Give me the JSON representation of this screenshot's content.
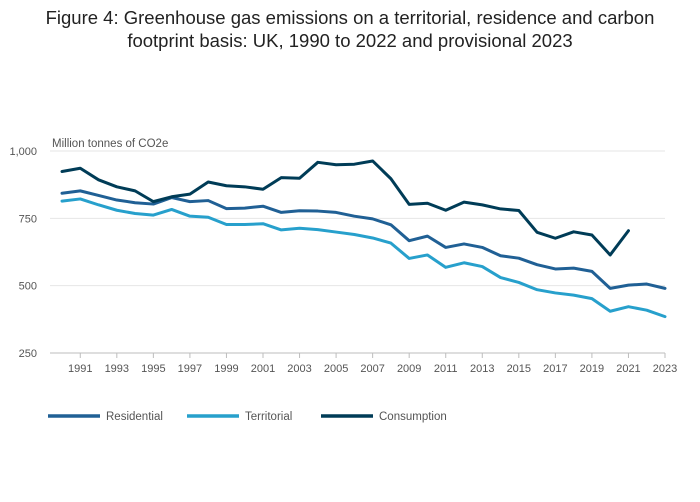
{
  "title_lines": [
    "Figure 4: Greenhouse gas emissions on a territorial, residence and carbon",
    "footprint basis: UK, 1990 to 2022 and provisional 2023"
  ],
  "chart_data": {
    "type": "line",
    "title": "Figure 4: Greenhouse gas emissions on a territorial, residence and carbon footprint basis: UK, 1990 to 2022 and provisional 2023",
    "ylabel": "Million tonnes of CO2e",
    "xlabel": "",
    "ylim": [
      250,
      1000
    ],
    "xlim": [
      1990,
      2023
    ],
    "yticks": [
      250,
      500,
      750,
      1000
    ],
    "ytick_labels": [
      "250",
      "500",
      "750",
      "1,000"
    ],
    "xticks": [
      1991,
      1993,
      1995,
      1997,
      1999,
      2001,
      2003,
      2005,
      2007,
      2009,
      2011,
      2013,
      2015,
      2017,
      2019,
      2021,
      2023
    ],
    "grid": "horizontal",
    "legend_position": "bottom-left",
    "x": [
      1990,
      1991,
      1992,
      1993,
      1994,
      1995,
      1996,
      1997,
      1998,
      1999,
      2000,
      2001,
      2002,
      2003,
      2004,
      2005,
      2006,
      2007,
      2008,
      2009,
      2010,
      2011,
      2012,
      2013,
      2014,
      2015,
      2016,
      2017,
      2018,
      2019,
      2020,
      2021,
      2022,
      2023
    ],
    "series": [
      {
        "name": "Residential",
        "color": "#206095",
        "values": [
          843,
          852,
          835,
          818,
          808,
          803,
          827,
          812,
          816,
          786,
          788,
          795,
          772,
          778,
          777,
          772,
          758,
          748,
          726,
          667,
          684,
          642,
          655,
          642,
          611,
          602,
          578,
          562,
          565,
          553,
          490,
          502,
          506,
          490
        ]
      },
      {
        "name": "Territorial",
        "color": "#27A0CC",
        "values": [
          814,
          822,
          800,
          780,
          768,
          762,
          783,
          758,
          754,
          727,
          727,
          730,
          707,
          713,
          708,
          699,
          690,
          677,
          658,
          601,
          614,
          568,
          585,
          571,
          530,
          512,
          485,
          473,
          465,
          452,
          405,
          422,
          409,
          385
        ]
      },
      {
        "name": "Consumption",
        "color": "#003C57",
        "values": [
          924,
          936,
          893,
          867,
          852,
          812,
          830,
          840,
          885,
          871,
          867,
          858,
          901,
          899,
          958,
          949,
          951,
          963,
          897,
          802,
          806,
          780,
          810,
          800,
          785,
          779,
          698,
          676,
          700,
          688,
          614,
          704,
          null,
          null
        ]
      }
    ]
  }
}
